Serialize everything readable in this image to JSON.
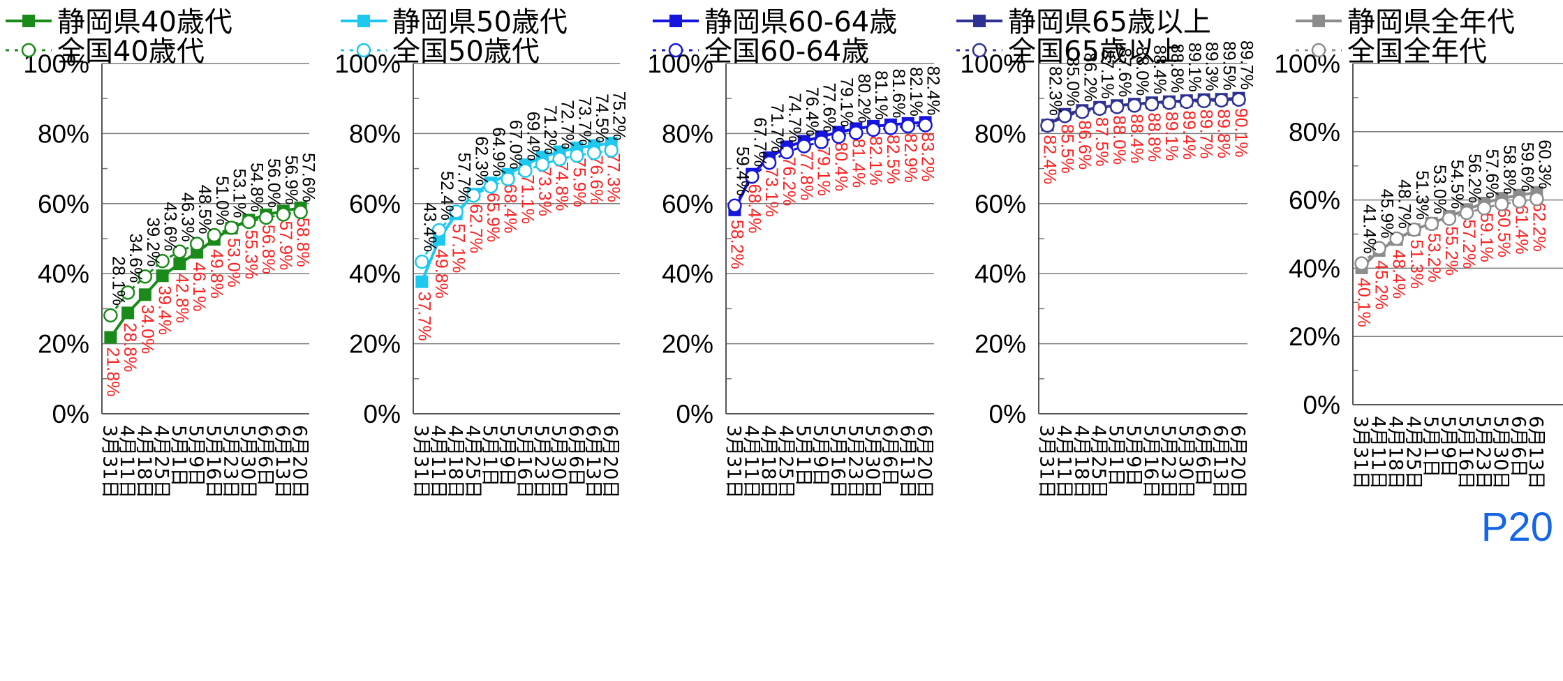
{
  "chart_data": [
    {
      "type": "line",
      "xcategories": [
        "3月31日",
        "4月11日",
        "4月18日",
        "4月25日",
        "5月1日",
        "5月9日",
        "5月16日",
        "5月23日",
        "5月30日",
        "6月6日",
        "6月13日",
        "6月20日"
      ],
      "ylim": [
        0,
        100
      ],
      "yticks": [
        "0%",
        "20%",
        "40%",
        "60%",
        "80%",
        "100%"
      ],
      "grid": true,
      "series": [
        {
          "name": "静岡県40歳代",
          "color": "#1a8a1a",
          "style": "solid",
          "marker": "filled-square",
          "values": [
            21.8,
            28.8,
            34.0,
            39.4,
            42.8,
            46.1,
            49.8,
            53.0,
            55.3,
            56.8,
            57.9,
            58.8
          ],
          "labels": [
            "21.8%",
            "28.8%",
            "34.0%",
            "39.4%",
            "42.8%",
            "46.1%",
            "49.8%",
            "53.0%",
            "55.3%",
            "56.8%",
            "57.9%",
            "58.8%"
          ]
        },
        {
          "name": "全国40歳代",
          "color": "#1a8a1a",
          "style": "dashed",
          "marker": "open-circle",
          "values": [
            28.1,
            34.6,
            39.2,
            43.6,
            46.3,
            48.5,
            51.0,
            53.1,
            54.8,
            56.0,
            56.9,
            57.6
          ],
          "labels": [
            "28.1%",
            "34.6%",
            "39.2%",
            "43.6%",
            "46.3%",
            "48.5%",
            "51.0%",
            "53.1%",
            "54.8%",
            "56.0%",
            "56.9%",
            "57.6%"
          ]
        }
      ]
    },
    {
      "type": "line",
      "xcategories": [
        "3月31日",
        "4月11日",
        "4月18日",
        "4月25日",
        "5月1日",
        "5月9日",
        "5月16日",
        "5月23日",
        "5月30日",
        "6月6日",
        "6月13日",
        "6月20日"
      ],
      "ylim": [
        0,
        100
      ],
      "yticks": [
        "0%",
        "20%",
        "40%",
        "60%",
        "80%",
        "100%"
      ],
      "grid": true,
      "series": [
        {
          "name": "静岡県50歳代",
          "color": "#1ec8ee",
          "style": "solid",
          "marker": "filled-square",
          "values": [
            37.7,
            49.8,
            57.1,
            62.7,
            65.9,
            68.4,
            71.1,
            73.3,
            74.8,
            75.9,
            76.6,
            77.3
          ],
          "labels": [
            "37.7%",
            "49.8%",
            "57.1%",
            "62.7%",
            "65.9%",
            "68.4%",
            "71.1%",
            "73.3%",
            "74.8%",
            "75.9%",
            "76.6%",
            "77.3%"
          ]
        },
        {
          "name": "全国50歳代",
          "color": "#1ec8ee",
          "style": "dashed",
          "marker": "open-circle",
          "values": [
            43.4,
            52.4,
            57.7,
            62.3,
            64.9,
            67.0,
            69.4,
            71.2,
            72.7,
            73.7,
            74.5,
            75.2
          ],
          "labels": [
            "43.4%",
            "52.4%",
            "57.7%",
            "62.3%",
            "64.9%",
            "67.0%",
            "69.4%",
            "71.2%",
            "72.7%",
            "73.7%",
            "74.5%",
            "75.2%"
          ]
        }
      ]
    },
    {
      "type": "line",
      "xcategories": [
        "3月31日",
        "4月11日",
        "4月18日",
        "4月25日",
        "5月1日",
        "5月9日",
        "5月16日",
        "5月23日",
        "5月30日",
        "6月6日",
        "6月13日",
        "6月20日"
      ],
      "ylim": [
        0,
        100
      ],
      "yticks": [
        "0%",
        "20%",
        "40%",
        "60%",
        "80%",
        "100%"
      ],
      "grid": true,
      "series": [
        {
          "name": "静岡県60-64歳",
          "color": "#1515dd",
          "style": "solid",
          "marker": "filled-square",
          "values": [
            58.2,
            68.4,
            73.1,
            76.2,
            77.8,
            79.1,
            80.4,
            81.4,
            82.1,
            82.5,
            82.9,
            83.2
          ],
          "labels": [
            "58.2%",
            "68.4%",
            "73.1%",
            "76.2%",
            "77.8%",
            "79.1%",
            "80.4%",
            "81.4%",
            "82.1%",
            "82.5%",
            "82.9%",
            "83.2%"
          ]
        },
        {
          "name": "全国60-64歳",
          "color": "#1515dd",
          "style": "dashed",
          "marker": "open-circle",
          "values": [
            59.4,
            67.7,
            71.7,
            74.7,
            76.4,
            77.6,
            79.1,
            80.2,
            81.1,
            81.6,
            82.1,
            82.4
          ],
          "labels": [
            "59.4%",
            "67.7%",
            "71.7%",
            "74.7%",
            "76.4%",
            "77.6%",
            "79.1%",
            "80.2%",
            "81.1%",
            "81.6%",
            "82.1%",
            "82.4%"
          ]
        }
      ]
    },
    {
      "type": "line",
      "xcategories": [
        "3月31日",
        "4月11日",
        "4月18日",
        "4月25日",
        "5月1日",
        "5月9日",
        "5月16日",
        "5月23日",
        "5月30日",
        "6月6日",
        "6月13日",
        "6月20日"
      ],
      "ylim": [
        0,
        100
      ],
      "yticks": [
        "0%",
        "20%",
        "40%",
        "60%",
        "80%",
        "100%"
      ],
      "grid": true,
      "series": [
        {
          "name": "静岡県65歳以上",
          "color": "#2e3192",
          "style": "solid",
          "marker": "filled-square",
          "values": [
            82.4,
            85.5,
            86.6,
            87.5,
            88.0,
            88.4,
            88.8,
            89.1,
            89.4,
            89.7,
            89.8,
            90.1
          ],
          "labels": [
            "82.4%",
            "85.5%",
            "86.6%",
            "87.5%",
            "88.0%",
            "88.4%",
            "88.8%",
            "89.1%",
            "89.4%",
            "89.7%",
            "89.8%",
            "90.1%"
          ]
        },
        {
          "name": "全国65歳以上",
          "color": "#2e3192",
          "style": "dashed",
          "marker": "open-circle",
          "values": [
            82.3,
            85.0,
            86.2,
            87.1,
            87.6,
            88.0,
            88.4,
            88.8,
            89.1,
            89.3,
            89.5,
            89.7
          ],
          "labels": [
            "82.3%",
            "85.0%",
            "86.2%",
            "87.1%",
            "87.6%",
            "88.0%",
            "88.4%",
            "88.8%",
            "89.1%",
            "89.3%",
            "89.5%",
            "89.7%"
          ]
        }
      ]
    },
    {
      "type": "line",
      "xcategories": [
        "3月31日",
        "4月11日",
        "4月18日",
        "4月25日",
        "5月1日",
        "5月9日",
        "5月16日",
        "5月23日",
        "5月30日",
        "6月6日",
        "6月13日"
      ],
      "ylim": [
        0,
        100
      ],
      "yticks": [
        "0%",
        "20%",
        "40%",
        "60%",
        "80%",
        "100%"
      ],
      "grid": true,
      "series": [
        {
          "name": "静岡県全年代",
          "color": "#8c8c8c",
          "style": "solid",
          "marker": "filled-square",
          "values": [
            40.1,
            45.2,
            48.4,
            51.3,
            53.2,
            55.2,
            57.2,
            59.1,
            60.5,
            61.4,
            62.2
          ],
          "labels": [
            "40.1%",
            "45.2%",
            "48.4%",
            "51.3%",
            "53.2%",
            "55.2%",
            "57.2%",
            "59.1%",
            "60.5%",
            "61.4%",
            "62.2%"
          ]
        },
        {
          "name": "全国全年代",
          "color": "#8c8c8c",
          "style": "dashed",
          "marker": "open-circle",
          "values": [
            41.4,
            45.9,
            48.7,
            51.3,
            53.0,
            54.5,
            56.2,
            57.6,
            58.8,
            59.6,
            60.3
          ],
          "labels": [
            "41.4%",
            "45.9%",
            "48.7%",
            "51.3%",
            "53.0%",
            "54.5%",
            "56.2%",
            "57.6%",
            "58.8%",
            "59.6%",
            "60.3%"
          ]
        }
      ]
    }
  ],
  "page_label": "P20"
}
